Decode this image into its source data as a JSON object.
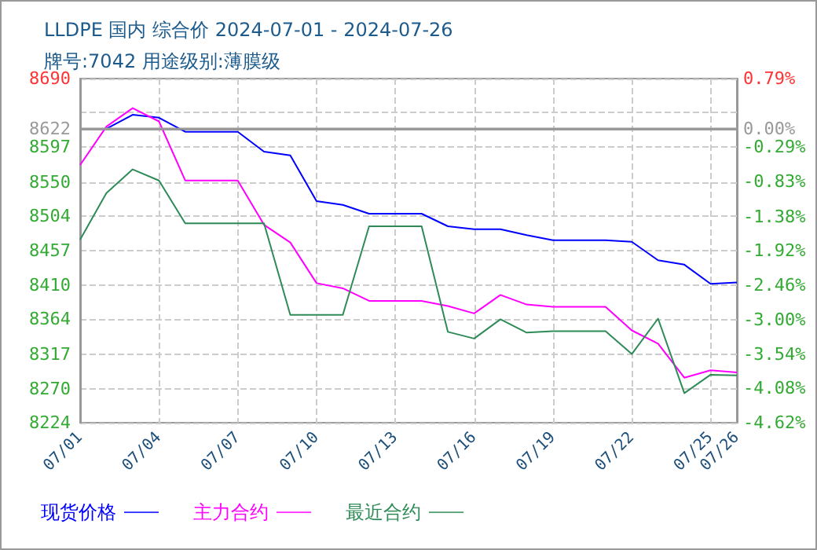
{
  "chart_data": {
    "type": "line",
    "title": "LLDPE 国内 综合价 2024-07-01 - 2024-07-26",
    "subtitle": "牌号:7042 用途级别:薄膜级",
    "x": [
      "2024-07-01",
      "2024-07-02",
      "2024-07-03",
      "2024-07-04",
      "2024-07-05",
      "2024-07-06",
      "2024-07-07",
      "2024-07-08",
      "2024-07-09",
      "2024-07-10",
      "2024-07-11",
      "2024-07-12",
      "2024-07-13",
      "2024-07-14",
      "2024-07-15",
      "2024-07-16",
      "2024-07-17",
      "2024-07-18",
      "2024-07-19",
      "2024-07-20",
      "2024-07-21",
      "2024-07-22",
      "2024-07-23",
      "2024-07-24",
      "2024-07-25",
      "2024-07-26"
    ],
    "series": [
      {
        "name": "现货价格",
        "color": "#0000ff",
        "values": [
          8622,
          8622,
          8641,
          8637,
          8618,
          8618,
          8618,
          8591,
          8586,
          8524,
          8519,
          8507,
          8507,
          8507,
          8490,
          8486,
          8486,
          8478,
          8471,
          8471,
          8471,
          8469,
          8444,
          8438,
          8412,
          8414
        ]
      },
      {
        "name": "主力合约",
        "color": "#ff00ff",
        "values": [
          8573,
          8625,
          8650,
          8632,
          8552,
          8552,
          8552,
          8492,
          8468,
          8413,
          8406,
          8389,
          8389,
          8389,
          8382,
          8372,
          8397,
          8384,
          8381,
          8381,
          8381,
          8349,
          8331,
          8285,
          8295,
          8292
        ]
      },
      {
        "name": "最近合约",
        "color": "#2e8b57",
        "values": [
          8472,
          8535,
          8567,
          8552,
          8494,
          8494,
          8494,
          8494,
          8370,
          8370,
          8370,
          8490,
          8490,
          8490,
          8347,
          8338,
          8364,
          8346,
          8348,
          8348,
          8348,
          8317,
          8365,
          8264,
          8289,
          8288
        ]
      }
    ],
    "xlim": [
      "2024-07-01",
      "2024-07-26"
    ],
    "xticks": [
      {
        "value": "2024-07-01",
        "label": "07/01"
      },
      {
        "value": "2024-07-04",
        "label": "07/04"
      },
      {
        "value": "2024-07-07",
        "label": "07/07"
      },
      {
        "value": "2024-07-10",
        "label": "07/10"
      },
      {
        "value": "2024-07-13",
        "label": "07/13"
      },
      {
        "value": "2024-07-16",
        "label": "07/16"
      },
      {
        "value": "2024-07-19",
        "label": "07/19"
      },
      {
        "value": "2024-07-22",
        "label": "07/22"
      },
      {
        "value": "2024-07-25",
        "label": "07/25"
      },
      {
        "value": "2024-07-26",
        "label": "07/26"
      }
    ],
    "ylim": [
      8224,
      8690
    ],
    "yticks": [
      8224,
      8270,
      8317,
      8364,
      8410,
      8457,
      8504,
      8550,
      8597,
      8622,
      {
        "value": 8644,
        "label": null
      },
      8690
    ],
    "y2lim": [
      -4.62,
      0.79
    ],
    "y2ticks": [
      {
        "value": -4.62,
        "label": "-4.62%"
      },
      {
        "value": -4.08,
        "label": "-4.08%"
      },
      {
        "value": -3.54,
        "label": "-3.54%"
      },
      {
        "value": -3.0,
        "label": "-3.00%"
      },
      {
        "value": -2.46,
        "label": "-2.46%"
      },
      {
        "value": -1.92,
        "label": "-1.92%"
      },
      {
        "value": -1.38,
        "label": "-1.38%"
      },
      {
        "value": -0.83,
        "label": "-0.83%"
      },
      {
        "value": -0.29,
        "label": "-0.29%"
      },
      {
        "value": 0.0,
        "label": "0.00%"
      },
      {
        "value": 0.79,
        "label": "0.79%"
      }
    ],
    "ref_lines": [
      {
        "axis": "y",
        "value": 8622,
        "color": "#999999",
        "line_style": "solid"
      }
    ],
    "grid": true,
    "legend": "bottom",
    "marker": "none",
    "line_style": "solid"
  }
}
